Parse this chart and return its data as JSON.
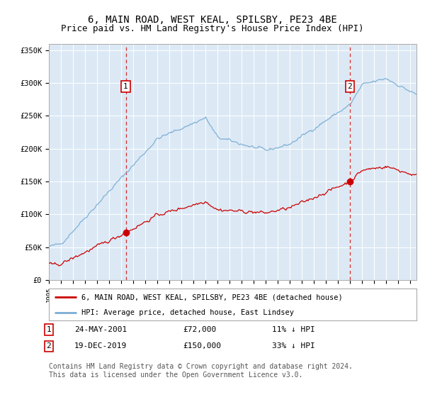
{
  "title": "6, MAIN ROAD, WEST KEAL, SPILSBY, PE23 4BE",
  "subtitle": "Price paid vs. HM Land Registry's House Price Index (HPI)",
  "title_fontsize": 10,
  "subtitle_fontsize": 9,
  "background_color": "#dce9f5",
  "fig_bg_color": "#ffffff",
  "red_line_label": "6, MAIN ROAD, WEST KEAL, SPILSBY, PE23 4BE (detached house)",
  "blue_line_label": "HPI: Average price, detached house, East Lindsey",
  "red_color": "#cc0000",
  "blue_color": "#7aadd4",
  "ylim": [
    0,
    360000
  ],
  "yticks": [
    0,
    50000,
    100000,
    150000,
    200000,
    250000,
    300000,
    350000
  ],
  "ytick_labels": [
    "£0",
    "£50K",
    "£100K",
    "£150K",
    "£200K",
    "£250K",
    "£300K",
    "£350K"
  ],
  "sale1_date": "24-MAY-2001",
  "sale1_price": 72000,
  "sale1_x": 2001.38,
  "sale1_label": "1",
  "sale2_date": "19-DEC-2019",
  "sale2_price": 150000,
  "sale2_x": 2019.96,
  "sale2_label": "2",
  "sale1_hpi_pct": "11% ↓ HPI",
  "sale2_hpi_pct": "33% ↓ HPI",
  "footnote": "Contains HM Land Registry data © Crown copyright and database right 2024.\nThis data is licensed under the Open Government Licence v3.0.",
  "footnote_fontsize": 7,
  "xmin": 1995,
  "xmax": 2025.5
}
